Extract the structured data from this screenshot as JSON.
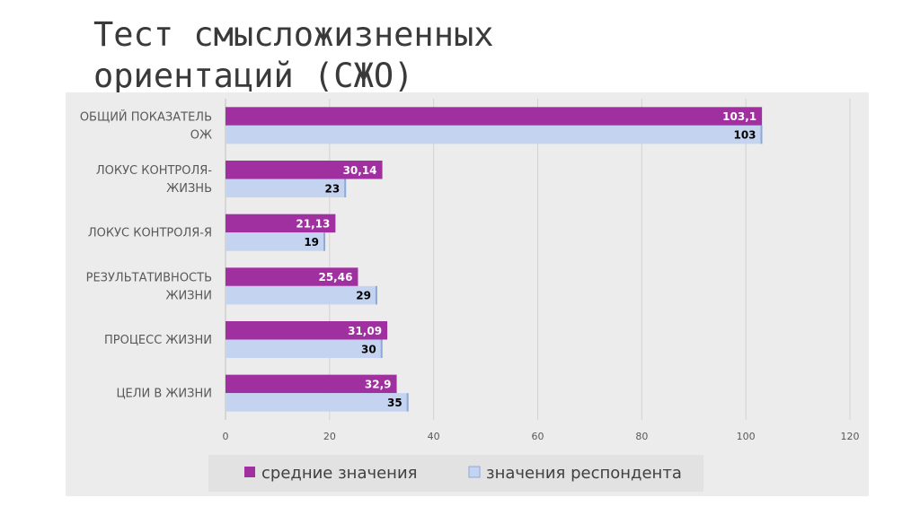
{
  "slide": {
    "title_line1": "Тест смысложизненных",
    "title_line2": "ориентаций (СЖО)"
  },
  "chart_data": {
    "type": "bar",
    "orientation": "horizontal",
    "categories": [
      [
        "ОБЩИЙ ПОКАЗАТЕЛЬ",
        "ОЖ"
      ],
      [
        "ЛОКУС КОНТРОЛЯ-",
        "ЖИЗНЬ"
      ],
      [
        "ЛОКУС КОНТРОЛЯ-Я"
      ],
      [
        "РЕЗУЛЬТАТИВНОСТЬ",
        "ЖИЗНИ"
      ],
      [
        "ПРОЦЕСС ЖИЗНИ"
      ],
      [
        "ЦЕЛИ В ЖИЗНИ"
      ]
    ],
    "series": [
      {
        "name": "средние значения",
        "color": "#a02fa0",
        "values": [
          103.1,
          30.14,
          21.13,
          25.46,
          31.09,
          32.9
        ],
        "labels": [
          "103,1",
          "30,14",
          "21,13",
          "25,46",
          "31,09",
          "32,9"
        ]
      },
      {
        "name": "значения респондента",
        "color": "#c4d3ef",
        "values": [
          103,
          23,
          19,
          29,
          30,
          35
        ],
        "labels": [
          "103",
          "23",
          "19",
          "29",
          "30",
          "35"
        ]
      }
    ],
    "xlim": [
      0,
      120
    ],
    "xticks": [
      0,
      20,
      40,
      60,
      80,
      100,
      120
    ],
    "grid": true,
    "legend_position": "bottom"
  }
}
